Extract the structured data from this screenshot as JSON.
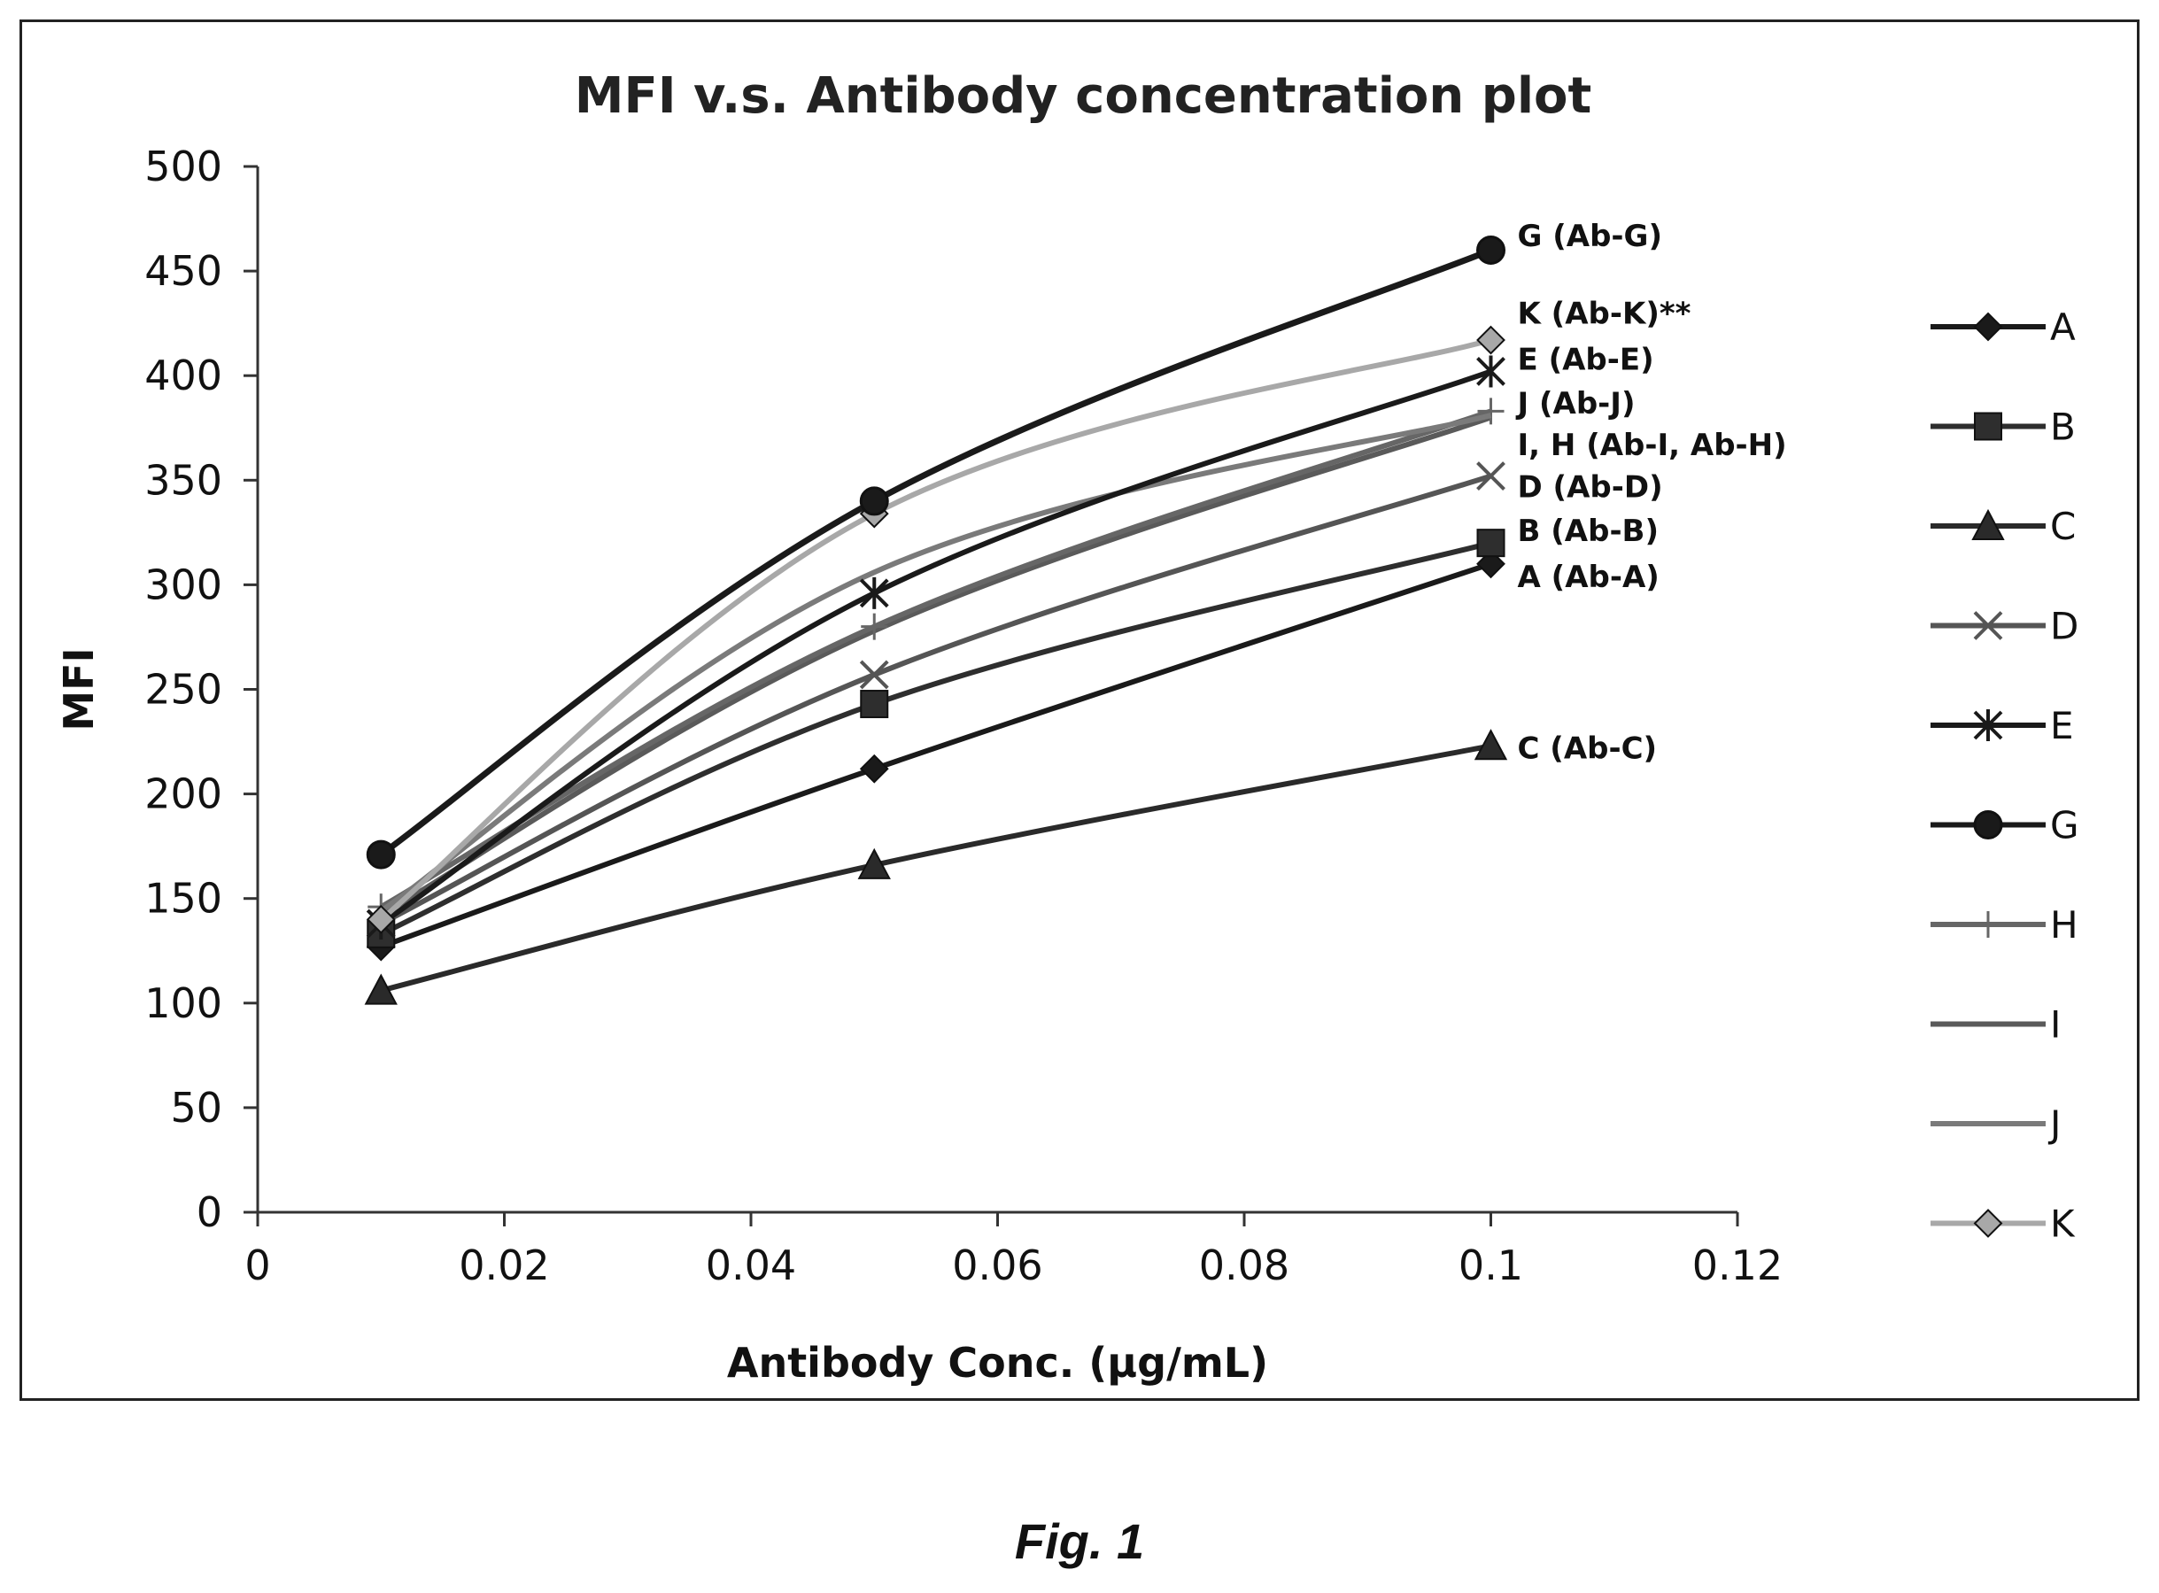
{
  "chart_data": {
    "type": "line",
    "title": "MFI v.s. Antibody concentration plot",
    "xlabel": "Antibody Conc. (µg/mL)",
    "ylabel": "MFI",
    "xlim": [
      0,
      0.12
    ],
    "ylim": [
      0,
      500
    ],
    "x_ticks": [
      "0",
      "0.02",
      "0.04",
      "0.06",
      "0.08",
      "0.1",
      "0.12"
    ],
    "x_tick_values": [
      0,
      0.02,
      0.04,
      0.06,
      0.08,
      0.1,
      0.12
    ],
    "y_ticks": [
      "0",
      "50",
      "100",
      "150",
      "200",
      "250",
      "300",
      "350",
      "400",
      "450",
      "500"
    ],
    "y_tick_values": [
      0,
      50,
      100,
      150,
      200,
      250,
      300,
      350,
      400,
      450,
      500
    ],
    "grid": false,
    "legend_position": "right",
    "x": [
      0.01,
      0.05,
      0.1
    ],
    "series": [
      {
        "name": "A",
        "values": [
          127,
          212,
          310
        ],
        "marker": "diamond",
        "color": "#1a1a1a"
      },
      {
        "name": "B",
        "values": [
          133,
          243,
          320
        ],
        "marker": "square",
        "color": "#2e2e2e"
      },
      {
        "name": "C",
        "values": [
          106,
          166,
          223
        ],
        "marker": "triangle",
        "color": "#2a2a2a"
      },
      {
        "name": "D",
        "values": [
          138,
          257,
          352
        ],
        "marker": "x",
        "color": "#555555"
      },
      {
        "name": "E",
        "values": [
          138,
          296,
          402
        ],
        "marker": "star",
        "color": "#1a1a1a"
      },
      {
        "name": "G",
        "values": [
          171,
          340,
          460
        ],
        "marker": "circle",
        "color": "#1a1a1a"
      },
      {
        "name": "H",
        "values": [
          146,
          280,
          383
        ],
        "marker": "plus",
        "color": "#666666"
      },
      {
        "name": "I",
        "values": [
          142,
          278,
          380
        ],
        "marker": "none",
        "color": "#5a5a5a"
      },
      {
        "name": "J",
        "values": [
          144,
          306,
          381
        ],
        "marker": "none",
        "color": "#7a7a7a"
      },
      {
        "name": "K",
        "values": [
          140,
          334,
          417
        ],
        "marker": "diamond",
        "color": "#a8a8a8"
      }
    ],
    "annotations": [
      {
        "text": "G (Ab-G)",
        "x": 0.1,
        "y": 467
      },
      {
        "text": "K (Ab-K)**",
        "x": 0.1,
        "y": 430
      },
      {
        "text": "E (Ab-E)",
        "x": 0.1,
        "y": 408
      },
      {
        "text": "J (Ab-J)",
        "x": 0.1,
        "y": 387
      },
      {
        "text": "I, H (Ab-I, Ab-H)",
        "x": 0.1,
        "y": 367
      },
      {
        "text": "D (Ab-D)",
        "x": 0.1,
        "y": 347
      },
      {
        "text": "B (Ab-B)",
        "x": 0.1,
        "y": 326
      },
      {
        "text": "A (Ab-A)",
        "x": 0.1,
        "y": 304
      },
      {
        "text": "C (Ab-C)",
        "x": 0.1,
        "y": 222
      }
    ]
  },
  "figure": {
    "caption": "Fig. 1"
  }
}
